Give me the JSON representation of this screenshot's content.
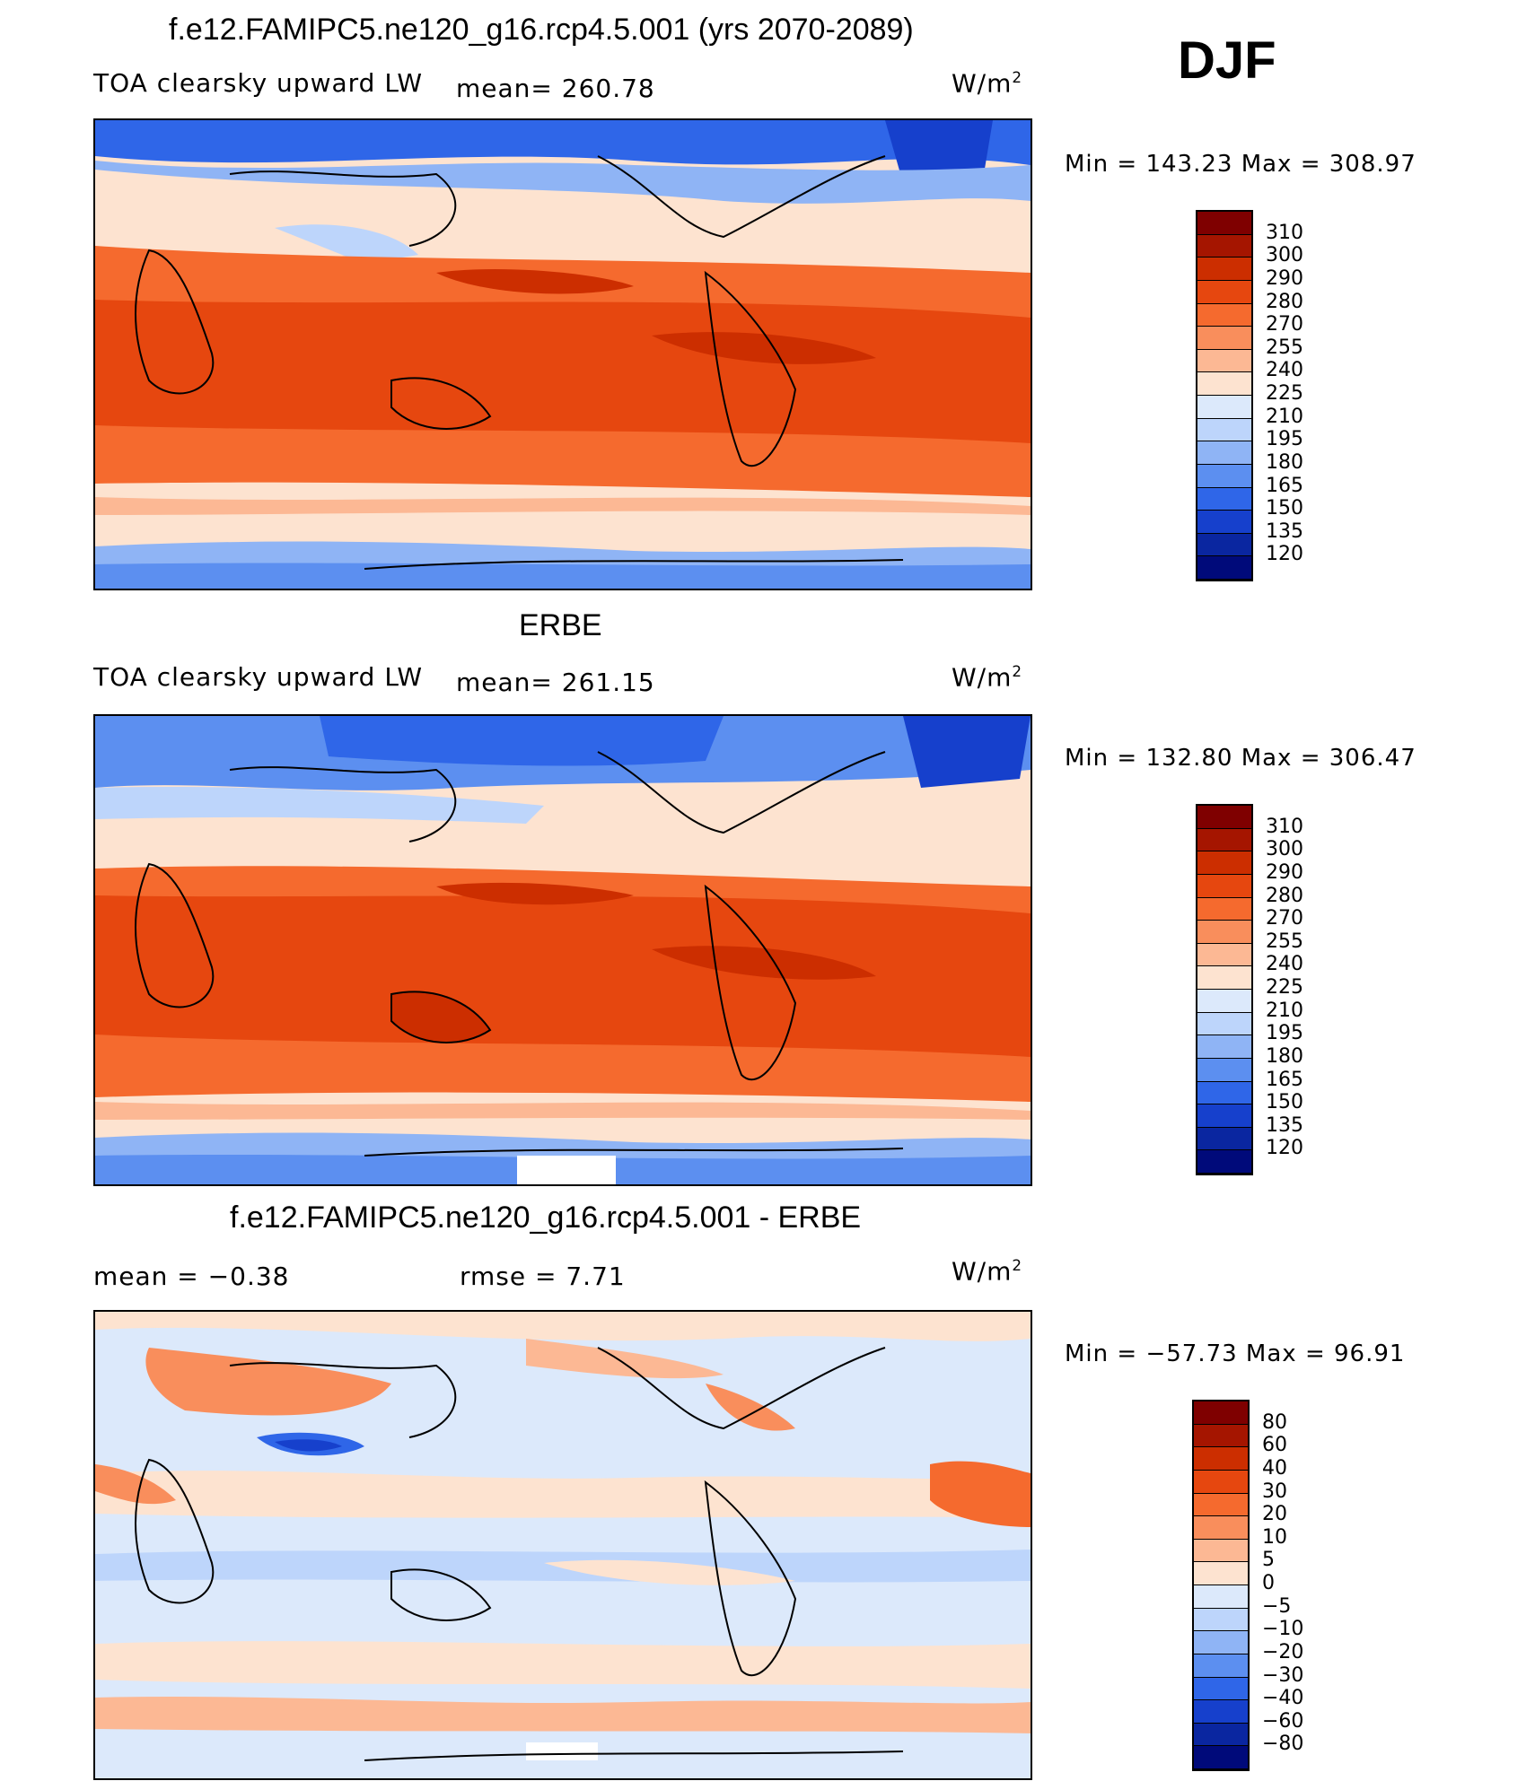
{
  "season": "DJF",
  "panels": [
    {
      "title": "f.e12.FAMIPC5.ne120_g16.rcp4.5.001 (yrs 2070-2089)",
      "left_label": "TOA clearsky upward LW",
      "mid_label": "mean=  260.78",
      "units": "W/m",
      "units_sup": "2",
      "minmax": "Min  =  143.23  Max  =  308.97",
      "colorbar_ticks": [
        "310",
        "300",
        "290",
        "280",
        "270",
        "255",
        "240",
        "225",
        "210",
        "195",
        "180",
        "165",
        "150",
        "135",
        "120"
      ]
    },
    {
      "title": "ERBE",
      "left_label": "TOA clearsky upward LW",
      "mid_label": "mean=  261.15",
      "units": "W/m",
      "units_sup": "2",
      "minmax": "Min  =  132.80  Max  =  306.47",
      "colorbar_ticks": [
        "310",
        "300",
        "290",
        "280",
        "270",
        "255",
        "240",
        "225",
        "210",
        "195",
        "180",
        "165",
        "150",
        "135",
        "120"
      ]
    },
    {
      "title": "f.e12.FAMIPC5.ne120_g16.rcp4.5.001 - ERBE",
      "left_label": "mean  =    −0.38",
      "mid_label": "rmse  =      7.71",
      "units": "W/m",
      "units_sup": "2",
      "minmax": "Min  =  −57.73  Max  =    96.91",
      "colorbar_ticks": [
        "80",
        "60",
        "40",
        "30",
        "20",
        "10",
        "5",
        "0",
        "−5",
        "−10",
        "−20",
        "−30",
        "−40",
        "−60",
        "−80"
      ]
    }
  ],
  "colors": {
    "abs_scale": [
      "#7f0000",
      "#a51500",
      "#cc2e00",
      "#e6470f",
      "#f56a2e",
      "#f98e5c",
      "#fcb894",
      "#fde3d0",
      "#dce9fb",
      "#bdd5fb",
      "#8fb4f5",
      "#5c8ff0",
      "#2f66e8",
      "#1640cc",
      "#0a26a0",
      "#000a7a"
    ],
    "diff_scale": [
      "#7f0000",
      "#a51500",
      "#cc2e00",
      "#e6470f",
      "#f56a2e",
      "#f98e5c",
      "#fcb894",
      "#fde3d0",
      "#dce9fb",
      "#bdd5fb",
      "#8fb4f5",
      "#5c8ff0",
      "#2f66e8",
      "#1640cc",
      "#0a26a0",
      "#000a7a"
    ]
  }
}
